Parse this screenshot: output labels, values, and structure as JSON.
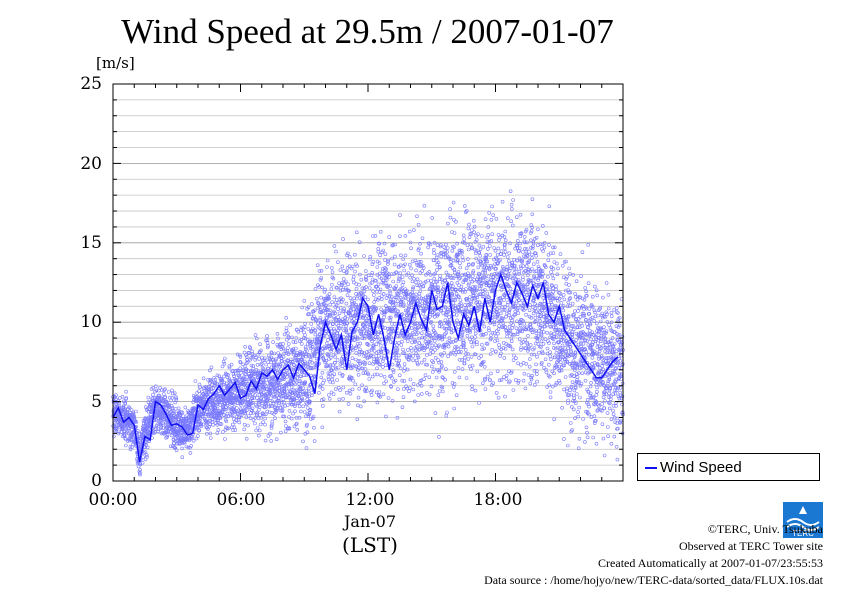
{
  "chart_data": {
    "type": "scatter",
    "title": "Wind Speed at 29.5m / 2007-01-07",
    "ylabel": "[m/s]",
    "xlabel": "(LST)",
    "date_label": "Jan-07",
    "ylim": [
      0,
      25
    ],
    "xlim_hours": [
      0,
      24
    ],
    "grid": true,
    "legend_position": "bottom-right",
    "y_ticks": [
      "0",
      "5",
      "10",
      "15",
      "20",
      "25"
    ],
    "x_ticks": [
      "00:00",
      "06:00",
      "12:00",
      "18:00"
    ],
    "series": [
      {
        "name": "Wind Speed",
        "style": "line",
        "color": "#1010ee",
        "x_hours": [
          0,
          0.25,
          0.5,
          0.75,
          1.0,
          1.25,
          1.5,
          1.75,
          2.0,
          2.25,
          2.5,
          2.75,
          3.0,
          3.25,
          3.5,
          3.75,
          4.0,
          4.25,
          4.5,
          4.75,
          5.0,
          5.25,
          5.5,
          5.75,
          6.0,
          6.25,
          6.5,
          6.75,
          7.0,
          7.25,
          7.5,
          7.75,
          8.0,
          8.25,
          8.5,
          8.75,
          9.0,
          9.25,
          9.5,
          9.75,
          10.0,
          10.25,
          10.5,
          10.75,
          11.0,
          11.25,
          11.5,
          11.75,
          12.0,
          12.25,
          12.5,
          12.75,
          13.0,
          13.25,
          13.5,
          13.75,
          14.0,
          14.25,
          14.5,
          14.75,
          15.0,
          15.25,
          15.5,
          15.75,
          16.0,
          16.25,
          16.5,
          16.75,
          17.0,
          17.25,
          17.5,
          17.75,
          18.0,
          18.25,
          18.5,
          18.75,
          19.0,
          19.25,
          19.5,
          19.75,
          20.0,
          20.25,
          20.5,
          20.75,
          21.0,
          21.25,
          21.5,
          21.75,
          22.0,
          22.25,
          22.5,
          22.75,
          23.0,
          23.25,
          23.5,
          23.75
        ],
        "values": [
          4.0,
          4.6,
          3.7,
          4.0,
          3.5,
          1.2,
          2.8,
          2.6,
          5.0,
          4.8,
          4.2,
          3.5,
          3.6,
          3.4,
          2.9,
          3.0,
          4.8,
          4.5,
          5.2,
          5.5,
          6.0,
          5.4,
          5.8,
          6.2,
          5.2,
          5.4,
          6.3,
          5.8,
          6.8,
          6.6,
          7.0,
          6.4,
          7.0,
          7.3,
          6.5,
          7.4,
          7.0,
          6.6,
          5.5,
          8.5,
          10.0,
          9.2,
          8.3,
          9.2,
          7.0,
          9.4,
          10.0,
          11.5,
          11.0,
          9.2,
          10.5,
          9.0,
          7.0,
          9.0,
          10.5,
          9.2,
          10.0,
          11.2,
          10.2,
          9.5,
          12.0,
          10.8,
          11.0,
          12.5,
          10.0,
          9.0,
          10.5,
          9.8,
          11.0,
          9.4,
          11.5,
          10.0,
          12.0,
          13.0,
          12.0,
          11.2,
          12.5,
          11.8,
          11.0,
          12.3,
          11.5,
          12.5,
          10.5,
          10.0,
          11.0,
          9.5,
          9.0,
          8.5,
          8.0,
          7.5,
          7.0,
          6.5,
          6.5,
          7.0,
          7.5,
          7.8
        ]
      },
      {
        "name": "",
        "style": "scatter",
        "color": "#7a7aff",
        "samples_per_hour": 240,
        "mean_hours": [
          0,
          1.0,
          1.25,
          1.5,
          2.0,
          3.5,
          4.0,
          6.0,
          9.0,
          10.0,
          12.0,
          15.0,
          18.0,
          20.0,
          22.0,
          24.0
        ],
        "mean_values": [
          4.2,
          3.6,
          1.5,
          2.8,
          4.7,
          3.0,
          4.6,
          5.6,
          6.9,
          9.4,
          10.0,
          10.8,
          11.8,
          11.5,
          8.0,
          7.0
        ],
        "spread_hours": [
          0,
          4.0,
          7.0,
          10.0,
          14.0,
          18.0,
          22.0,
          24.0
        ],
        "spread_values": [
          0.9,
          1.1,
          1.8,
          3.0,
          3.6,
          3.6,
          3.2,
          3.0
        ]
      }
    ]
  },
  "credits": {
    "copyright": "©TERC, Univ. Tsukuba",
    "observed": "Observed at TERC Tower site",
    "created": "Created Automatically at 2007-01-07/23:55:53",
    "source": "Data source : /home/hojyo/new/TERC-data/sorted_data/FLUX.10s.dat",
    "logo_text": "TERC"
  }
}
